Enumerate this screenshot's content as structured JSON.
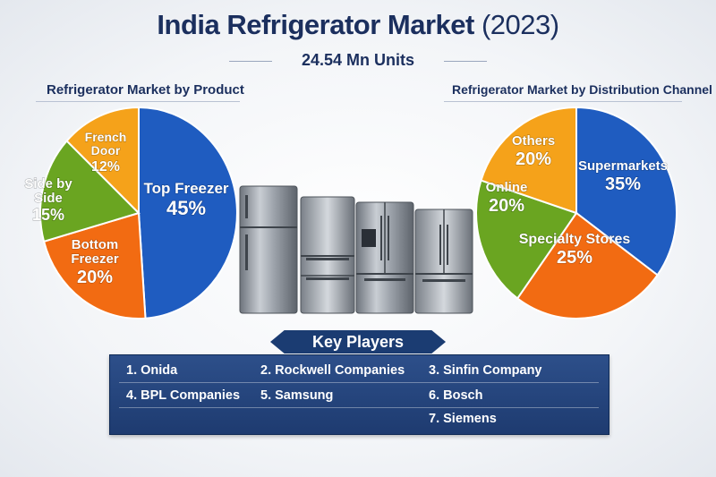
{
  "header": {
    "title": "India Refrigerator Market",
    "year": "(2023)",
    "subtitle": "24.54 Mn Units"
  },
  "chart_data": [
    {
      "type": "pie",
      "title": "Refrigerator Market by Product",
      "categories": [
        "Top Freezer",
        "Bottom Freezer",
        "Side by Side",
        "French Door"
      ],
      "values": [
        45,
        20,
        15,
        12
      ],
      "unit": "%",
      "labels": [
        {
          "lines": [
            "Top Freezer"
          ],
          "value": "45%"
        },
        {
          "lines": [
            "Bottom",
            "Freezer"
          ],
          "value": "20%"
        },
        {
          "lines": [
            "Side by",
            "Side"
          ],
          "value": "15%"
        },
        {
          "lines": [
            "French",
            "Door"
          ],
          "value": "12%"
        }
      ],
      "colors": [
        "#1f5cc0",
        "#f26b12",
        "#6aa521",
        "#f5a21a"
      ]
    },
    {
      "type": "pie",
      "title": "Refrigerator Market by Distribution Channel",
      "categories": [
        "Supermarkets",
        "Specialty Stores",
        "Online",
        "Others"
      ],
      "values": [
        35,
        25,
        20,
        20
      ],
      "unit": "%",
      "labels": [
        {
          "lines": [
            "Supermarkets"
          ],
          "value": "35%"
        },
        {
          "lines": [
            "Specialty Stores"
          ],
          "value": "25%"
        },
        {
          "lines": [
            "Online"
          ],
          "value": "20%"
        },
        {
          "lines": [
            "Others"
          ],
          "value": "20%"
        }
      ],
      "colors": [
        "#1f5cc0",
        "#f26b12",
        "#6aa521",
        "#f5a21a"
      ]
    }
  ],
  "key_players": {
    "title": "Key Players",
    "items": [
      "1. Onida",
      "2. Rockwell Companies",
      "3. Sinfin Company",
      "4. BPL Companies",
      "5. Samsung",
      "6. Bosch",
      "7. Siemens"
    ]
  }
}
